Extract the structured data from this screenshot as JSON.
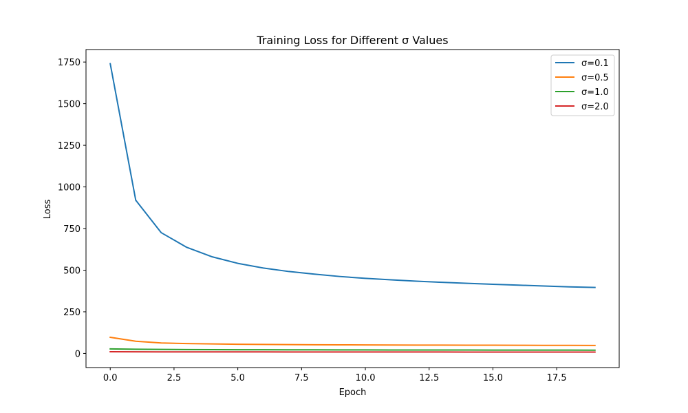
{
  "chart_data": {
    "type": "line",
    "title": "Training Loss for Different σ Values",
    "xlabel": "Epoch",
    "ylabel": "Loss",
    "xlim": [
      -0.95,
      19.95
    ],
    "ylim": [
      -85,
      1825
    ],
    "grid": false,
    "legend_position": "top-right",
    "x_ticks": [
      0,
      2.5,
      5,
      7.5,
      10,
      12.5,
      15,
      17.5
    ],
    "x_tick_labels": [
      "0.0",
      "2.5",
      "5.0",
      "7.5",
      "10.0",
      "12.5",
      "15.0",
      "17.5"
    ],
    "y_ticks": [
      0,
      250,
      500,
      750,
      1000,
      1250,
      1500,
      1750
    ],
    "y_tick_labels": [
      "0",
      "250",
      "500",
      "750",
      "1000",
      "1250",
      "1500",
      "1750"
    ],
    "x": [
      0,
      1,
      2,
      3,
      4,
      5,
      6,
      7,
      8,
      9,
      10,
      11,
      12,
      13,
      14,
      15,
      16,
      17,
      18,
      19
    ],
    "series": [
      {
        "name": "σ=0.1",
        "color": "#1f77b4",
        "values": [
          1740,
          920,
          725,
          637,
          580,
          541,
          513,
          492,
          476,
          462,
          451,
          442,
          434,
          427,
          421,
          415,
          410,
          405,
          400,
          396
        ]
      },
      {
        "name": "σ=0.5",
        "color": "#ff7f0e",
        "values": [
          97,
          73,
          63,
          59,
          57,
          55,
          54,
          53,
          52,
          51.5,
          51,
          50.5,
          50,
          49.7,
          49.4,
          49.1,
          48.8,
          48.5,
          48.2,
          48
        ]
      },
      {
        "name": "σ=1.0",
        "color": "#2ca02c",
        "values": [
          27,
          25,
          24,
          23,
          22.5,
          22,
          21.8,
          21.5,
          21.3,
          21,
          20.8,
          20.6,
          20.5,
          20.3,
          20.2,
          20,
          19.9,
          19.8,
          19.7,
          19.6
        ]
      },
      {
        "name": "σ=2.0",
        "color": "#d62728",
        "values": [
          10,
          9.6,
          9.3,
          9.1,
          9,
          8.9,
          8.8,
          8.7,
          8.6,
          8.5,
          8.4,
          8.4,
          8.3,
          8.3,
          8.2,
          8.2,
          8.1,
          8.1,
          8,
          8
        ]
      }
    ]
  }
}
